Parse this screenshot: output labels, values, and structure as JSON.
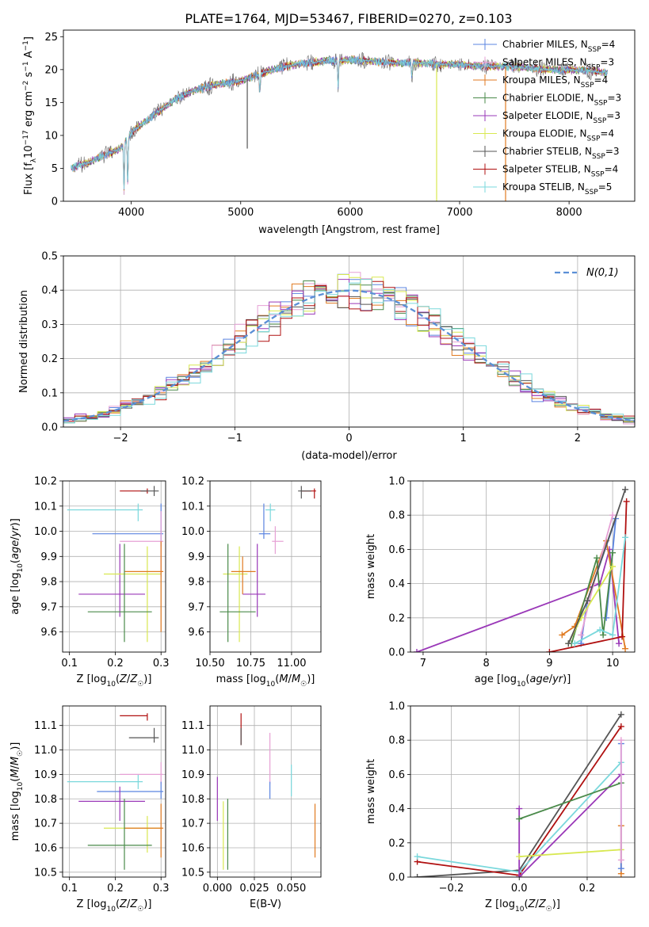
{
  "figure_title": "PLATE=1764, MJD=53467, FIBERID=0270, z=0.103",
  "model_colors": {
    "Chabrier MILES": "#5b84e0",
    "Salpeter MILES": "#e6a0d5",
    "Kroupa MILES": "#e07a20",
    "Chabrier ELODIE": "#4a8a4a",
    "Salpeter ELODIE": "#9a38b8",
    "Kroupa ELODIE": "#d8e850",
    "Chabrier STELIB": "#555555",
    "Salpeter STELIB": "#b01010",
    "Kroupa STELIB": "#7ad8dc"
  },
  "chart_data": [
    {
      "id": "spectrum",
      "type": "line",
      "title": "PLATE=1764, MJD=53467, FIBERID=0270, z=0.103",
      "xlabel": "wavelength [Angstrom, rest frame]",
      "ylabel": "Flux [f_λ 10^-17 erg cm^-2 s^-1 A^-1]",
      "xlim": [
        3380,
        8600
      ],
      "ylim": [
        0,
        26
      ],
      "xticks": [
        4000,
        5000,
        6000,
        7000,
        8000
      ],
      "yticks": [
        0,
        5,
        10,
        15,
        20,
        25
      ],
      "grid": false,
      "legend_position": "top-right",
      "legend": [
        {
          "model": "Chabrier MILES",
          "base": "Chabrier MILES, N",
          "sub": "SSP",
          "tail": "=4"
        },
        {
          "model": "Salpeter MILES",
          "base": "Salpeter MILES, N",
          "sub": "SSP",
          "tail": "=3"
        },
        {
          "model": "Kroupa MILES",
          "base": "Kroupa MILES, N",
          "sub": "SSP",
          "tail": "=4"
        },
        {
          "model": "Chabrier ELODIE",
          "base": "Chabrier ELODIE, N",
          "sub": "SSP",
          "tail": "=3"
        },
        {
          "model": "Salpeter ELODIE",
          "base": "Salpeter ELODIE, N",
          "sub": "SSP",
          "tail": "=3"
        },
        {
          "model": "Kroupa ELODIE",
          "base": "Kroupa ELODIE, N",
          "sub": "SSP",
          "tail": "=4"
        },
        {
          "model": "Chabrier STELIB",
          "base": "Chabrier STELIB, N",
          "sub": "SSP",
          "tail": "=3"
        },
        {
          "model": "Salpeter STELIB",
          "base": "Salpeter STELIB, N",
          "sub": "SSP",
          "tail": "=4"
        },
        {
          "model": "Kroupa STELIB",
          "base": "Kroupa STELIB, N",
          "sub": "SSP",
          "tail": "=5"
        }
      ],
      "continuum": {
        "x": [
          3450,
          3600,
          3750,
          3900,
          4000,
          4200,
          4400,
          4600,
          4800,
          5000,
          5200,
          5400,
          5600,
          5800,
          6000,
          6200,
          6400,
          6600,
          6800,
          7000,
          7200,
          7400,
          7600,
          7800,
          8000,
          8200,
          8350
        ],
        "y": [
          5.0,
          5.8,
          7.0,
          8.0,
          10.5,
          13.0,
          15.5,
          17.0,
          17.8,
          18.3,
          19.5,
          20.5,
          21.0,
          21.3,
          21.5,
          21.3,
          21.0,
          21.0,
          20.8,
          20.8,
          20.5,
          20.5,
          20.3,
          20.0,
          20.0,
          19.8,
          19.5
        ]
      },
      "absorption_features": [
        {
          "x": 3934,
          "y": 1.5
        },
        {
          "x": 3968,
          "y": 2.5
        },
        {
          "x": 5175,
          "y": 16.5
        },
        {
          "x": 5890,
          "y": 17.5
        },
        {
          "x": 6563,
          "y": 19.0
        }
      ],
      "spikes": [
        {
          "x": 5060,
          "y": 8.0,
          "model": "Chabrier STELIB"
        },
        {
          "x": 6790,
          "y": 0.0,
          "model": "Kroupa ELODIE"
        },
        {
          "x": 7420,
          "y": 0.0,
          "model": "Kroupa MILES"
        }
      ]
    },
    {
      "id": "residual-histogram",
      "type": "histogram",
      "xlabel": "(data-model)/error",
      "ylabel": "Normed distribution",
      "xlim": [
        -2.5,
        2.5
      ],
      "ylim": [
        0,
        0.5
      ],
      "xticks": [
        -2,
        -1,
        0,
        1,
        2
      ],
      "yticks": [
        0.0,
        0.1,
        0.2,
        0.3,
        0.4,
        0.5
      ],
      "grid": true,
      "bin_width": 0.1,
      "reference_curve": {
        "mean": 0,
        "sigma": 1,
        "legend": "N(0,1)",
        "color": "#5b8fd6",
        "style": "dashed"
      },
      "legend_position": "top-right"
    },
    {
      "id": "age-vs-Z",
      "type": "errorbar",
      "xlabel": "Z [log10(Z/Z_sun)]",
      "ylabel": "age [log10(age/yr)]",
      "xlim": [
        0.085,
        0.31
      ],
      "ylim": [
        9.52,
        10.2
      ],
      "xticks": [
        0.1,
        0.2,
        0.3
      ],
      "yticks": [
        9.6,
        9.7,
        9.8,
        9.9,
        10.0,
        10.1,
        10.2
      ],
      "grid": true,
      "points": [
        {
          "model": "Salpeter STELIB",
          "x": 0.27,
          "xerr": [
            0.21,
            0.27
          ],
          "y": 10.16,
          "yerr": [
            10.15,
            10.17
          ]
        },
        {
          "model": "Chabrier STELIB",
          "x": 0.285,
          "xerr": [
            0.255,
            0.295
          ],
          "y": 10.16,
          "yerr": [
            10.14,
            10.18
          ]
        },
        {
          "model": "Kroupa STELIB",
          "x": 0.25,
          "xerr": [
            0.095,
            0.26
          ],
          "y": 10.085,
          "yerr": [
            10.04,
            10.11
          ]
        },
        {
          "model": "Chabrier MILES",
          "x": 0.3,
          "xerr": [
            0.15,
            0.305
          ],
          "y": 9.99,
          "yerr": [
            9.94,
            10.11
          ]
        },
        {
          "model": "Salpeter MILES",
          "x": 0.3,
          "xerr": [
            0.21,
            0.305
          ],
          "y": 9.96,
          "yerr": [
            9.82,
            10.08
          ]
        },
        {
          "model": "Salpeter ELODIE",
          "x": 0.21,
          "xerr": [
            0.12,
            0.265
          ],
          "y": 9.75,
          "yerr": [
            9.66,
            9.95
          ]
        },
        {
          "model": "Kroupa ELODIE",
          "x": 0.27,
          "xerr": [
            0.175,
            0.3
          ],
          "y": 9.83,
          "yerr": [
            9.56,
            9.94
          ]
        },
        {
          "model": "Kroupa MILES",
          "x": 0.3,
          "xerr": [
            0.22,
            0.305
          ],
          "y": 9.84,
          "yerr": [
            9.6,
            9.96
          ]
        },
        {
          "model": "Chabrier ELODIE",
          "x": 0.22,
          "xerr": [
            0.14,
            0.28
          ],
          "y": 9.68,
          "yerr": [
            9.56,
            9.95
          ]
        }
      ]
    },
    {
      "id": "age-vs-mass",
      "type": "errorbar",
      "xlabel": "mass [log10(M/M_sun)]",
      "ylabel": "",
      "xlim": [
        10.5,
        11.18
      ],
      "ylim": [
        9.52,
        10.2
      ],
      "xticks": [
        10.5,
        10.75,
        11.0
      ],
      "yticks": [
        9.6,
        9.7,
        9.8,
        9.9,
        10.0,
        10.1,
        10.2
      ],
      "grid": true,
      "points": [
        {
          "model": "Salpeter STELIB",
          "x": 11.14,
          "xerr": [
            11.06,
            11.15
          ],
          "y": 10.16,
          "yerr": [
            10.13,
            10.17
          ]
        },
        {
          "model": "Chabrier STELIB",
          "x": 11.06,
          "xerr": [
            11.04,
            11.12
          ],
          "y": 10.16,
          "yerr": [
            10.13,
            10.18
          ]
        },
        {
          "model": "Kroupa STELIB",
          "x": 10.87,
          "xerr": [
            10.84,
            10.9
          ],
          "y": 10.085,
          "yerr": [
            10.04,
            10.11
          ]
        },
        {
          "model": "Chabrier MILES",
          "x": 10.83,
          "xerr": [
            10.8,
            10.87
          ],
          "y": 9.99,
          "yerr": [
            9.97,
            10.11
          ]
        },
        {
          "model": "Salpeter MILES",
          "x": 10.9,
          "xerr": [
            10.88,
            10.95
          ],
          "y": 9.96,
          "yerr": [
            9.91,
            10.02
          ]
        },
        {
          "model": "Salpeter ELODIE",
          "x": 10.79,
          "xerr": [
            10.7,
            10.84
          ],
          "y": 9.75,
          "yerr": [
            9.66,
            9.95
          ]
        },
        {
          "model": "Kroupa ELODIE",
          "x": 10.68,
          "xerr": [
            10.58,
            10.73
          ],
          "y": 9.83,
          "yerr": [
            9.56,
            9.94
          ]
        },
        {
          "model": "Kroupa MILES",
          "x": 10.7,
          "xerr": [
            10.63,
            10.78
          ],
          "y": 9.84,
          "yerr": [
            9.75,
            9.9
          ]
        },
        {
          "model": "Chabrier ELODIE",
          "x": 10.61,
          "xerr": [
            10.56,
            10.78
          ],
          "y": 9.68,
          "yerr": [
            9.56,
            9.95
          ]
        }
      ]
    },
    {
      "id": "mass-weight-vs-age",
      "type": "line",
      "xlabel": "age [log10(age/yr)]",
      "ylabel": "mass weight",
      "xlim": [
        6.8,
        10.35
      ],
      "ylim": [
        0,
        1.0
      ],
      "xticks": [
        7,
        8,
        9,
        10
      ],
      "yticks": [
        0.0,
        0.2,
        0.4,
        0.6,
        0.8,
        1.0
      ],
      "grid": true,
      "series": [
        {
          "model": "Salpeter ELODIE",
          "x": [
            6.9,
            9.8,
            9.95,
            10.1
          ],
          "y": [
            0.0,
            0.4,
            0.6,
            0.05
          ]
        },
        {
          "model": "Kroupa MILES",
          "x": [
            9.2,
            9.4,
            9.9,
            10.2
          ],
          "y": [
            0.1,
            0.15,
            0.65,
            0.02
          ]
        },
        {
          "model": "Chabrier MILES",
          "x": [
            9.5,
            9.6,
            10.05,
            9.9
          ],
          "y": [
            0.05,
            0.3,
            0.78,
            0.2
          ]
        },
        {
          "model": "Salpeter MILES",
          "x": [
            9.5,
            9.7,
            10.0
          ],
          "y": [
            0.1,
            0.4,
            0.8
          ]
        },
        {
          "model": "Chabrier ELODIE",
          "x": [
            9.35,
            9.75,
            9.85,
            10.0
          ],
          "y": [
            0.05,
            0.55,
            0.1,
            0.58
          ]
        },
        {
          "model": "Kroupa ELODIE",
          "x": [
            9.3,
            9.5,
            10.0
          ],
          "y": [
            0.05,
            0.2,
            0.5
          ]
        },
        {
          "model": "Chabrier STELIB",
          "x": [
            9.3,
            9.6,
            10.2
          ],
          "y": [
            0.05,
            0.3,
            0.95
          ]
        },
        {
          "model": "Salpeter STELIB",
          "x": [
            9.0,
            10.15,
            10.22
          ],
          "y": [
            0.0,
            0.09,
            0.88
          ]
        },
        {
          "model": "Kroupa STELIB",
          "x": [
            9.4,
            9.8,
            10.0,
            10.2
          ],
          "y": [
            0.05,
            0.13,
            0.1,
            0.67
          ]
        }
      ]
    },
    {
      "id": "mass-vs-Z",
      "type": "errorbar",
      "xlabel": "Z [log10(Z/Z_sun)]",
      "ylabel": "mass [log10(M/M_sun)]",
      "xlim": [
        0.085,
        0.31
      ],
      "ylim": [
        10.48,
        11.18
      ],
      "xticks": [
        0.1,
        0.2,
        0.3
      ],
      "yticks": [
        10.5,
        10.6,
        10.7,
        10.8,
        10.9,
        11.0,
        11.1
      ],
      "grid": true,
      "points": [
        {
          "model": "Salpeter STELIB",
          "x": 0.27,
          "xerr": [
            0.21,
            0.27
          ],
          "y": 11.14,
          "yerr": [
            11.12,
            11.15
          ]
        },
        {
          "model": "Chabrier STELIB",
          "x": 0.285,
          "xerr": [
            0.23,
            0.295
          ],
          "y": 11.05,
          "yerr": [
            11.03,
            11.09
          ]
        },
        {
          "model": "Kroupa STELIB",
          "x": 0.25,
          "xerr": [
            0.095,
            0.26
          ],
          "y": 10.87,
          "yerr": [
            10.84,
            10.9
          ]
        },
        {
          "model": "Salpeter MILES",
          "x": 0.3,
          "xerr": [
            0.21,
            0.305
          ],
          "y": 10.9,
          "yerr": [
            10.86,
            10.95
          ]
        },
        {
          "model": "Chabrier MILES",
          "x": 0.3,
          "xerr": [
            0.16,
            0.305
          ],
          "y": 10.83,
          "yerr": [
            10.8,
            10.87
          ]
        },
        {
          "model": "Salpeter ELODIE",
          "x": 0.21,
          "xerr": [
            0.12,
            0.265
          ],
          "y": 10.79,
          "yerr": [
            10.71,
            10.85
          ]
        },
        {
          "model": "Kroupa ELODIE",
          "x": 0.27,
          "xerr": [
            0.175,
            0.3
          ],
          "y": 10.68,
          "yerr": [
            10.58,
            10.73
          ]
        },
        {
          "model": "Kroupa MILES",
          "x": 0.3,
          "xerr": [
            0.22,
            0.305
          ],
          "y": 10.68,
          "yerr": [
            10.56,
            10.78
          ]
        },
        {
          "model": "Chabrier ELODIE",
          "x": 0.22,
          "xerr": [
            0.14,
            0.28
          ],
          "y": 10.61,
          "yerr": [
            10.51,
            10.8
          ]
        }
      ]
    },
    {
      "id": "mass-vs-EBV",
      "type": "errorbar",
      "xlabel": "E(B-V)",
      "ylabel": "",
      "xlim": [
        -0.005,
        0.07
      ],
      "ylim": [
        10.48,
        11.18
      ],
      "xticks": [
        0.0,
        0.025,
        0.05
      ],
      "yticks": [
        10.5,
        10.6,
        10.7,
        10.8,
        10.9,
        11.0,
        11.1
      ],
      "grid": true,
      "points": [
        {
          "model": "Salpeter STELIB",
          "x": 0.016,
          "y": 11.09,
          "yerr": [
            11.02,
            11.15
          ]
        },
        {
          "model": "Chabrier STELIB",
          "x": 0.016,
          "y": 11.04,
          "yerr": [
            11.02,
            11.09
          ]
        },
        {
          "model": "Salpeter MILES",
          "x": 0.0355,
          "y": 10.97,
          "yerr": [
            10.86,
            11.07
          ]
        },
        {
          "model": "Chabrier MILES",
          "x": 0.0355,
          "y": 10.83,
          "yerr": [
            10.8,
            10.87
          ]
        },
        {
          "model": "Kroupa STELIB",
          "x": 0.05,
          "y": 10.87,
          "yerr": [
            10.81,
            10.94
          ]
        },
        {
          "model": "Salpeter ELODIE",
          "x": 0.0,
          "y": 10.8,
          "yerr": [
            10.71,
            10.89
          ]
        },
        {
          "model": "Kroupa ELODIE",
          "x": 0.004,
          "y": 10.65,
          "yerr": [
            10.51,
            10.79
          ]
        },
        {
          "model": "Chabrier ELODIE",
          "x": 0.007,
          "y": 10.65,
          "yerr": [
            10.51,
            10.8
          ]
        },
        {
          "model": "Kroupa MILES",
          "x": 0.066,
          "y": 10.67,
          "yerr": [
            10.56,
            10.78
          ]
        }
      ]
    },
    {
      "id": "mass-weight-vs-Z",
      "type": "line",
      "xlabel": "Z [log10(Z/Z_sun)]",
      "ylabel": "mass weight",
      "xlim": [
        -0.32,
        0.34
      ],
      "ylim": [
        0,
        1.0
      ],
      "xticks": [
        -0.2,
        0.0,
        0.2
      ],
      "yticks": [
        0.0,
        0.2,
        0.4,
        0.6,
        0.8,
        1.0
      ],
      "grid": true,
      "series": [
        {
          "model": "Chabrier STELIB",
          "x": [
            -0.3,
            0.0,
            0.3
          ],
          "y": [
            0.0,
            0.04,
            0.95
          ]
        },
        {
          "model": "Salpeter STELIB",
          "x": [
            -0.3,
            0.0,
            0.3
          ],
          "y": [
            0.09,
            0.01,
            0.88
          ]
        },
        {
          "model": "Kroupa STELIB",
          "x": [
            -0.3,
            0.0,
            0.3
          ],
          "y": [
            0.12,
            0.03,
            0.67
          ]
        },
        {
          "model": "Salpeter ELODIE",
          "x": [
            0.0,
            0.0,
            0.3
          ],
          "y": [
            0.4,
            0.0,
            0.6
          ]
        },
        {
          "model": "Chabrier ELODIE",
          "x": [
            0.0,
            0.3
          ],
          "y": [
            0.34,
            0.55
          ]
        },
        {
          "model": "Kroupa ELODIE",
          "x": [
            0.0,
            0.3
          ],
          "y": [
            0.12,
            0.16
          ]
        },
        {
          "model": "Kroupa MILES",
          "x": [
            0.3,
            0.3
          ],
          "y": [
            0.02,
            0.3
          ]
        },
        {
          "model": "Chabrier MILES",
          "x": [
            0.3,
            0.3
          ],
          "y": [
            0.05,
            0.78
          ]
        },
        {
          "model": "Salpeter MILES",
          "x": [
            0.3,
            0.3
          ],
          "y": [
            0.1,
            0.8
          ]
        }
      ]
    }
  ]
}
